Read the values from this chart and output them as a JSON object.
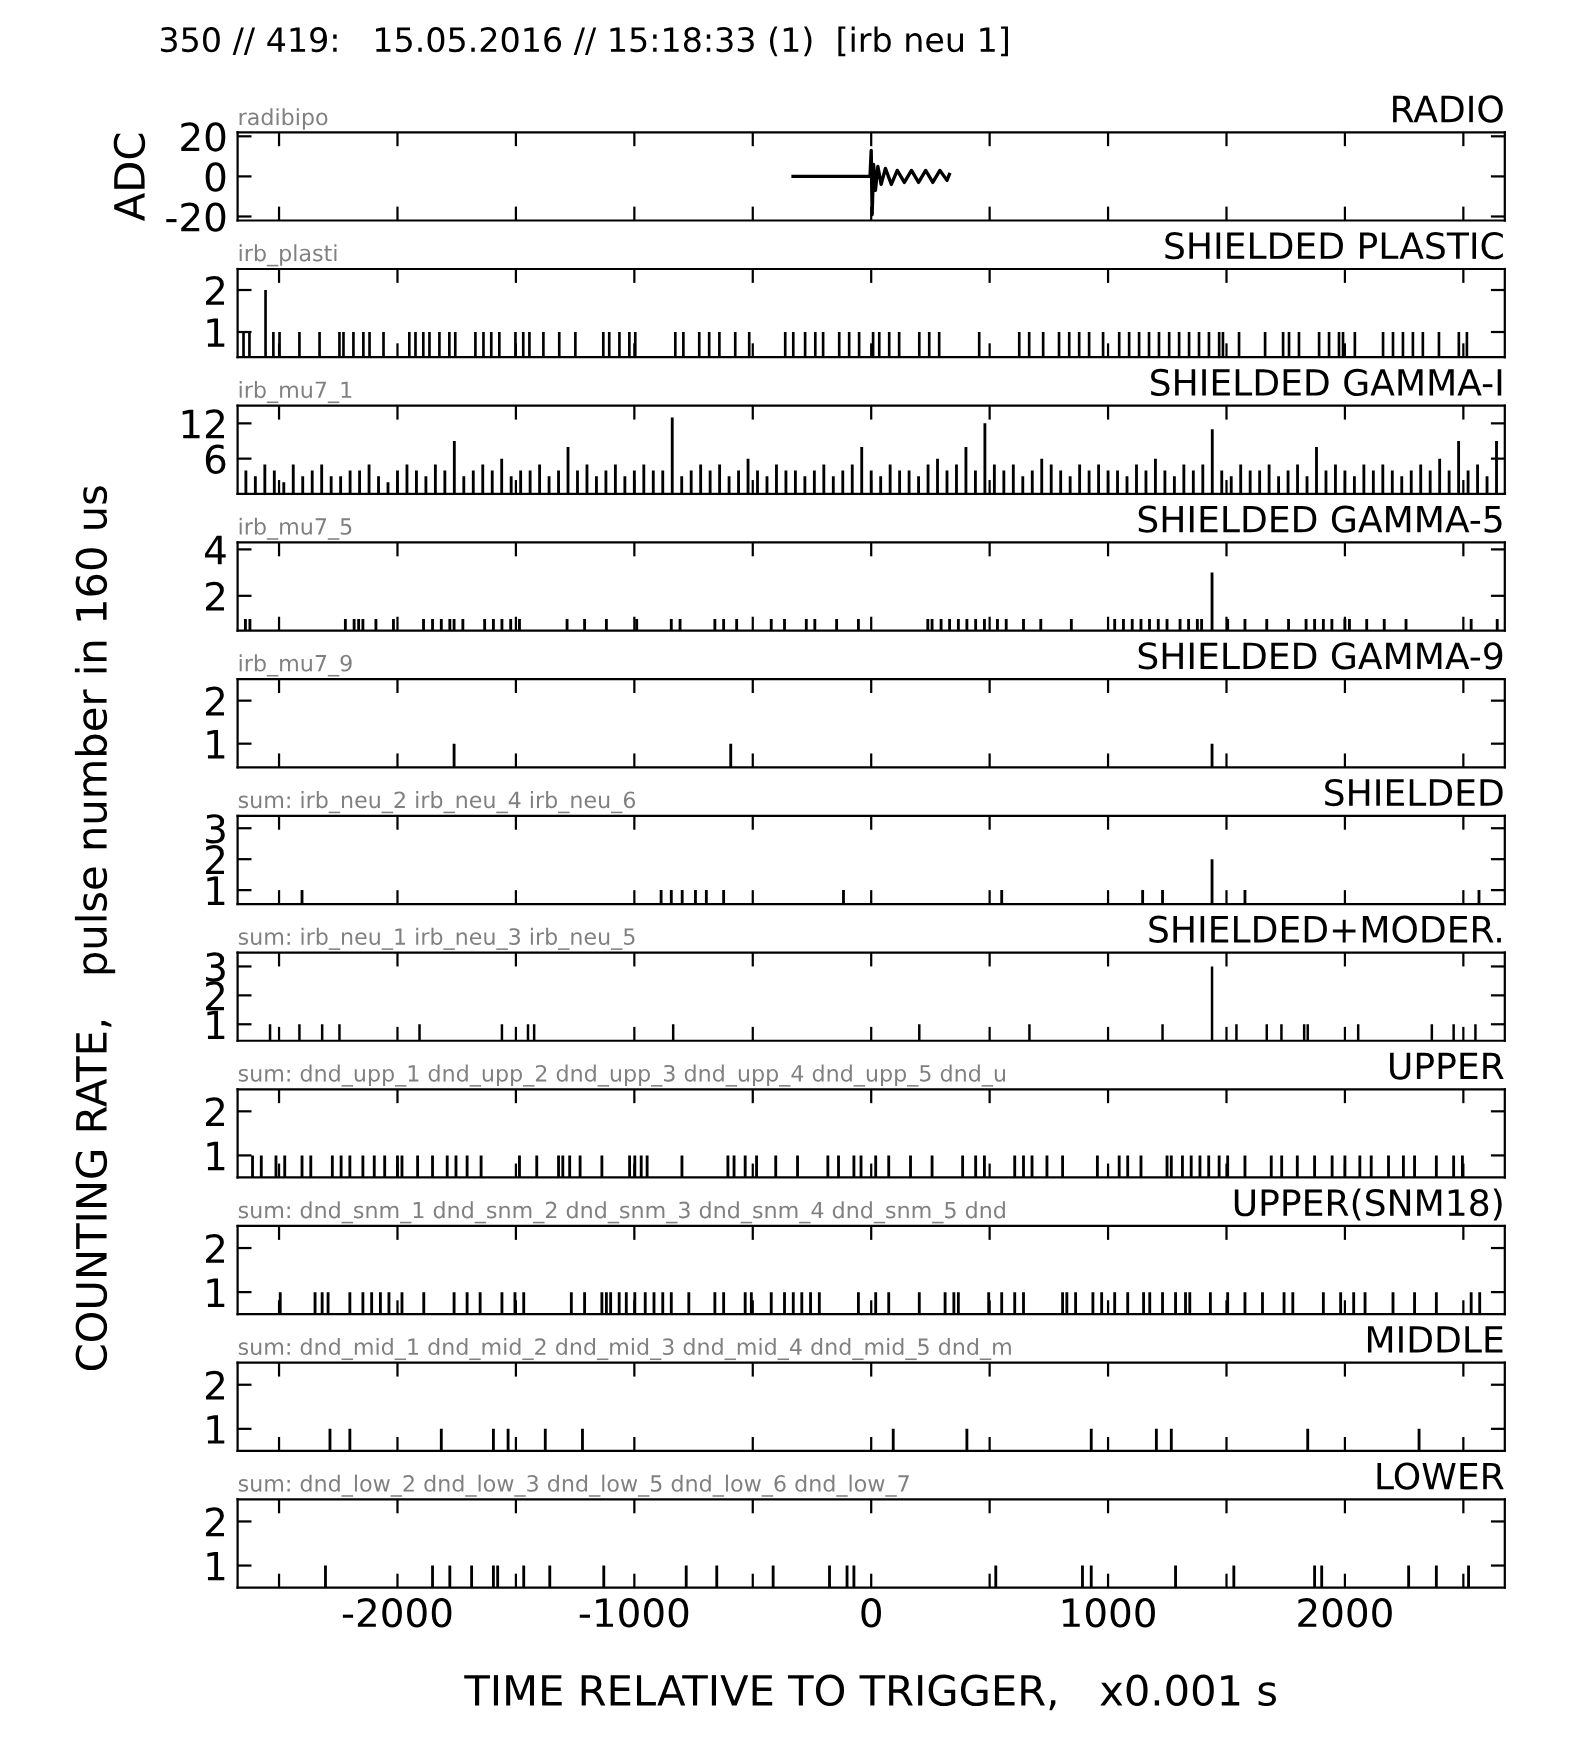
{
  "chart_data": [
    {
      "type": "line",
      "title": "RADIO",
      "subtitle": "350 // 419:   15.05.2016 // 15:18:33 (1)  [irb neu 1]",
      "ylabel": "ADC",
      "annotations": [
        "radibipo"
      ],
      "color": "#000000",
      "x": [
        -330,
        -5,
        0,
        4,
        10,
        18,
        28,
        42,
        60,
        85,
        110,
        140,
        170,
        200,
        230,
        260,
        290,
        320,
        330
      ],
      "values": [
        0,
        0,
        13,
        -19,
        6,
        -7,
        5,
        -4,
        4,
        -4,
        3,
        -3,
        3,
        -3,
        3,
        -3,
        3,
        -2,
        1
      ],
      "xlim": [
        -2675,
        2675
      ],
      "ylim": [
        -22,
        22
      ],
      "yticks": [
        -20,
        0,
        20
      ],
      "tick_labels": "y",
      "xticks": [
        {
          "value": -2500,
          "label": null
        },
        -2000,
        {
          "value": -1500,
          "label": null
        },
        -1000,
        {
          "value": -500,
          "label": null
        },
        0,
        {
          "value": 500,
          "label": null
        },
        1000,
        {
          "value": 1500,
          "label": null
        },
        2000,
        {
          "value": 2500,
          "label": null
        }
      ]
    },
    {
      "type": "bar",
      "title": "SHIELDED PLASTIC",
      "ylabel": "COUNTING RATE,   pulse number in 160 us",
      "annotations": [
        "irb_plasti"
      ],
      "color": "#000000",
      "x": [
        -2650,
        -2625,
        -2557,
        -2524,
        -2498,
        -2414,
        -2329,
        -2245,
        -2228,
        -2186,
        -2144,
        -2118,
        -2059,
        -1950,
        -1924,
        -1891,
        -1865,
        -1823,
        -1781,
        -1756,
        -1671,
        -1637,
        -1604,
        -1570,
        -1502,
        -1469,
        -1443,
        -1384,
        -1317,
        -1249,
        -1131,
        -1106,
        -1063,
        -1021,
        -996,
        -827,
        -793,
        -726,
        -684,
        -641,
        -574,
        -515,
        -363,
        -329,
        -279,
        -236,
        -203,
        -135,
        -93,
        -51,
        8,
        34,
        76,
        118,
        203,
        245,
        287,
        456,
        625,
        667,
        726,
        793,
        836,
        878,
        920,
        979,
        1047,
        1089,
        1131,
        1173,
        1215,
        1258,
        1300,
        1342,
        1384,
        1426,
        1469,
        1485,
        1553,
        1663,
        1739,
        1764,
        1806,
        1891,
        1933,
        1975,
        1992,
        2042,
        2161,
        2203,
        2245,
        2287,
        2329,
        2397,
        2481,
        2515
      ],
      "values": [
        1,
        1,
        2,
        1,
        1,
        1,
        1,
        1,
        1,
        1,
        1,
        1,
        1,
        1,
        1,
        1,
        1,
        1,
        1,
        1,
        1,
        1,
        1,
        1,
        1,
        1,
        1,
        1,
        1,
        1,
        1,
        1,
        1,
        1,
        1,
        1,
        1,
        1,
        1,
        1,
        1,
        1,
        1,
        1,
        1,
        1,
        1,
        1,
        1,
        1,
        1,
        1,
        1,
        1,
        1,
        1,
        1,
        1,
        1,
        1,
        1,
        1,
        1,
        1,
        1,
        1,
        1,
        1,
        1,
        1,
        1,
        1,
        1,
        1,
        1,
        1,
        1,
        1,
        1,
        1,
        1,
        1,
        1,
        1,
        1,
        1,
        1,
        1,
        1,
        1,
        1,
        1,
        1,
        1,
        1,
        1
      ],
      "xlim": [
        -2675,
        2675
      ],
      "ylim": [
        0.4,
        2.5
      ],
      "yticks": [
        1,
        2
      ],
      "tick_labels": "y",
      "xticks": [
        {
          "value": -2500,
          "label": null
        },
        -2000,
        {
          "value": -1500,
          "label": null
        },
        -1000,
        {
          "value": -500,
          "label": null
        },
        0,
        {
          "value": 500,
          "label": null
        },
        1000,
        {
          "value": 1500,
          "label": null
        },
        2000,
        {
          "value": 2500,
          "label": null
        }
      ]
    },
    {
      "type": "bar",
      "title": "SHIELDED GAMMA-I",
      "annotations": [
        "irb_mu7_1"
      ],
      "color": "#000000",
      "x": [
        -2640,
        -2600,
        -2560,
        -2520,
        -2480,
        -2440,
        -2400,
        -2360,
        -2320,
        -2280,
        -2240,
        -2200,
        -2160,
        -2120,
        -2080,
        -2040,
        -2000,
        -1960,
        -1920,
        -1880,
        -1840,
        -1800,
        -1760,
        -1720,
        -1680,
        -1640,
        -1600,
        -1560,
        -1520,
        -1480,
        -1440,
        -1400,
        -1360,
        -1320,
        -1280,
        -1240,
        -1200,
        -1160,
        -1120,
        -1080,
        -1040,
        -1000,
        -960,
        -920,
        -880,
        -840,
        -800,
        -760,
        -720,
        -680,
        -640,
        -600,
        -560,
        -520,
        -480,
        -440,
        -400,
        -360,
        -320,
        -280,
        -240,
        -200,
        -160,
        -120,
        -80,
        -40,
        0,
        40,
        80,
        120,
        160,
        200,
        240,
        280,
        320,
        360,
        400,
        440,
        480,
        520,
        560,
        600,
        640,
        680,
        720,
        760,
        800,
        840,
        880,
        920,
        960,
        1000,
        1040,
        1080,
        1120,
        1160,
        1200,
        1240,
        1280,
        1320,
        1360,
        1400,
        1440,
        1480,
        1520,
        1560,
        1600,
        1640,
        1680,
        1720,
        1760,
        1800,
        1840,
        1880,
        1920,
        1960,
        2000,
        2040,
        2080,
        2120,
        2160,
        2200,
        2240,
        2280,
        2320,
        2360,
        2400,
        2440,
        2480,
        2520,
        2560,
        2600,
        2640
      ],
      "values": [
        4,
        3,
        5,
        4,
        2,
        5,
        3,
        4,
        5,
        3,
        3,
        4,
        4,
        5,
        3,
        2,
        4,
        5,
        4,
        3,
        5,
        4,
        9,
        3,
        4,
        5,
        4,
        6,
        3,
        4,
        4,
        5,
        3,
        4,
        8,
        4,
        5,
        3,
        4,
        5,
        3,
        4,
        5,
        4,
        4,
        13,
        3,
        4,
        5,
        4,
        5,
        3,
        4,
        6,
        4,
        3,
        5,
        4,
        4,
        3,
        4,
        5,
        3,
        4,
        5,
        8,
        4,
        3,
        5,
        4,
        4,
        3,
        5,
        6,
        4,
        5,
        8,
        4,
        12,
        5,
        4,
        5,
        3,
        4,
        6,
        5,
        4,
        3,
        5,
        4,
        5,
        4,
        4,
        3,
        5,
        4,
        6,
        4,
        3,
        5,
        4,
        5,
        11,
        4,
        3,
        5,
        4,
        4,
        5,
        3,
        4,
        5,
        3,
        8,
        4,
        5,
        4,
        3,
        5,
        4,
        5,
        4,
        3,
        4,
        5,
        4,
        6,
        4,
        9,
        4,
        5,
        3,
        9
      ],
      "xlim": [
        -2675,
        2675
      ],
      "ylim": [
        0,
        15
      ],
      "yticks": [
        6,
        12
      ],
      "tick_labels": "y",
      "xticks": [
        {
          "value": -2500,
          "label": null
        },
        -2000,
        {
          "value": -1500,
          "label": null
        },
        -1000,
        {
          "value": -500,
          "label": null
        },
        0,
        {
          "value": 500,
          "label": null
        },
        1000,
        {
          "value": 1500,
          "label": null
        },
        2000,
        {
          "value": 2500,
          "label": null
        }
      ]
    },
    {
      "type": "bar",
      "title": "SHIELDED GAMMA-5",
      "annotations": [
        "irb_mu7_5"
      ],
      "color": "#000000",
      "x": [
        -2642,
        -2623,
        -2220,
        -2183,
        -2164,
        -2146,
        -2091,
        -2017,
        -1890,
        -1852,
        -1815,
        -1779,
        -1761,
        -1724,
        -1632,
        -1595,
        -1559,
        -1522,
        -1485,
        -1284,
        -1210,
        -1118,
        -990,
        -844,
        -807,
        -660,
        -623,
        -568,
        -422,
        -366,
        -274,
        -238,
        -146,
        -54,
        239,
        257,
        295,
        331,
        368,
        404,
        441,
        478,
        533,
        570,
        643,
        716,
        845,
        1028,
        1065,
        1102,
        1139,
        1175,
        1212,
        1249,
        1304,
        1340,
        1377,
        1395,
        1439,
        1505,
        1578,
        1670,
        1762,
        1836,
        1872,
        1909,
        1945,
        2000,
        2019,
        2092,
        2166,
        2258,
        2533,
        2643
      ],
      "values": [
        1,
        1,
        1,
        1,
        1,
        1,
        1,
        1,
        1,
        1,
        1,
        1,
        1,
        1,
        1,
        1,
        1,
        1,
        1,
        1,
        1,
        1,
        1,
        1,
        1,
        1,
        1,
        1,
        1,
        1,
        1,
        1,
        1,
        1,
        1,
        1,
        1,
        1,
        1,
        1,
        1,
        1,
        1,
        1,
        1,
        1,
        1,
        1,
        1,
        1,
        1,
        1,
        1,
        1,
        1,
        1,
        1,
        1,
        3,
        1,
        1,
        1,
        1,
        1,
        1,
        1,
        1,
        1,
        1,
        1,
        1,
        1,
        1,
        1
      ],
      "xlim": [
        -2675,
        2675
      ],
      "ylim": [
        0.5,
        4.3
      ],
      "yticks": [
        2,
        4
      ],
      "tick_labels": "y",
      "xticks": [
        {
          "value": -2500,
          "label": null
        },
        -2000,
        {
          "value": -1500,
          "label": null
        },
        -1000,
        {
          "value": -500,
          "label": null
        },
        0,
        {
          "value": 500,
          "label": null
        },
        1000,
        {
          "value": 1500,
          "label": null
        },
        2000,
        {
          "value": 2500,
          "label": null
        }
      ]
    },
    {
      "type": "bar",
      "title": "SHIELDED GAMMA-9",
      "annotations": [
        "irb_mu7_9"
      ],
      "color": "#000000",
      "x": [
        -1761,
        -593,
        1439
      ],
      "values": [
        1,
        1,
        1
      ],
      "xlim": [
        -2675,
        2675
      ],
      "ylim": [
        0.45,
        2.5
      ],
      "yticks": [
        1,
        2
      ],
      "tick_labels": "y",
      "xticks": [
        {
          "value": -2500,
          "label": null
        },
        -2000,
        {
          "value": -1500,
          "label": null
        },
        -1000,
        {
          "value": -500,
          "label": null
        },
        0,
        {
          "value": 500,
          "label": null
        },
        1000,
        {
          "value": 1500,
          "label": null
        },
        2000,
        {
          "value": 2500,
          "label": null
        }
      ]
    },
    {
      "type": "bar",
      "title": "SHIELDED",
      "annotations": [
        "sum: irb_neu_2 irb_neu_4 irb_neu_6"
      ],
      "color": "#000000",
      "x": [
        -2403,
        -887,
        -844,
        -798,
        -742,
        -696,
        -623,
        -117,
        551,
        1146,
        1230,
        1439,
        1578,
        2566
      ],
      "values": [
        1,
        1,
        1,
        1,
        1,
        1,
        1,
        1,
        1,
        1,
        1,
        2,
        1,
        1
      ],
      "xlim": [
        -2675,
        2675
      ],
      "ylim": [
        0.55,
        3.4
      ],
      "yticks": [
        1,
        2,
        3
      ],
      "tick_labels": "y",
      "xticks": [
        {
          "value": -2500,
          "label": null
        },
        -2000,
        {
          "value": -1500,
          "label": null
        },
        -1000,
        {
          "value": -500,
          "label": null
        },
        0,
        {
          "value": 500,
          "label": null
        },
        1000,
        {
          "value": 1500,
          "label": null
        },
        2000,
        {
          "value": 2500,
          "label": null
        }
      ]
    },
    {
      "type": "bar",
      "title": "SHIELDED+MODER.",
      "annotations": [
        "sum: irb_neu_1 irb_neu_3 irb_neu_5"
      ],
      "color": "#000000",
      "x": [
        -2538,
        -2414,
        -2318,
        -2245,
        -1907,
        -1559,
        -1449,
        -1423,
        -836,
        203,
        668,
        1230,
        1439,
        1542,
        1670,
        1732,
        1828,
        1843,
        2056,
        2367,
        2459,
        2551
      ],
      "values": [
        1,
        1,
        1,
        1,
        1,
        1,
        1,
        1,
        1,
        1,
        1,
        1,
        3,
        1,
        1,
        1,
        1,
        1,
        1,
        1,
        1,
        1
      ],
      "xlim": [
        -2675,
        2675
      ],
      "ylim": [
        0.43,
        3.48
      ],
      "yticks": [
        1,
        2,
        3
      ],
      "tick_labels": "y",
      "xticks": [
        {
          "value": -2500,
          "label": null
        },
        -2000,
        {
          "value": -1500,
          "label": null
        },
        -1000,
        {
          "value": -500,
          "label": null
        },
        0,
        {
          "value": 500,
          "label": null
        },
        1000,
        {
          "value": 1500,
          "label": null
        },
        2000,
        {
          "value": 2500,
          "label": null
        }
      ]
    },
    {
      "type": "bar",
      "title": "UPPER",
      "annotations": [
        "sum: dnd_upp_1 dnd_upp_2 dnd_upp_3 dnd_upp_4 dnd_upp_5 dnd_u"
      ],
      "color": "#000000",
      "x": [
        -2612,
        -2575,
        -2513,
        -2476,
        -2403,
        -2366,
        -2275,
        -2238,
        -2201,
        -2146,
        -2098,
        -2054,
        -2000,
        -1981,
        -1915,
        -1852,
        -1790,
        -1753,
        -1706,
        -1647,
        -1485,
        -1412,
        -1320,
        -1302,
        -1273,
        -1229,
        -1137,
        -1020,
        -998,
        -971,
        -946,
        -799,
        -605,
        -579,
        -532,
        -484,
        -403,
        -311,
        -183,
        -138,
        -73,
        -43,
        19,
        74,
        166,
        257,
        386,
        441,
        478,
        606,
        643,
        679,
        742,
        808,
        955,
        1047,
        1083,
        1139,
        1249,
        1267,
        1314,
        1351,
        1388,
        1425,
        1469,
        1505,
        1578,
        1689,
        1733,
        1799,
        1872,
        1946,
        2000,
        2063,
        2111,
        2184,
        2247,
        2294,
        2386,
        2459,
        2496
      ],
      "values": [
        1,
        1,
        1,
        1,
        1,
        1,
        1,
        1,
        1,
        1,
        1,
        1,
        1,
        1,
        1,
        1,
        1,
        1,
        1,
        1,
        1,
        1,
        1,
        1,
        1,
        1,
        1,
        1,
        1,
        1,
        1,
        1,
        1,
        1,
        1,
        1,
        1,
        1,
        1,
        1,
        1,
        1,
        1,
        1,
        1,
        1,
        1,
        1,
        1,
        1,
        1,
        1,
        1,
        1,
        1,
        1,
        1,
        1,
        1,
        1,
        1,
        1,
        1,
        1,
        1,
        1,
        1,
        1,
        1,
        1,
        1,
        1,
        1,
        1,
        1,
        1,
        1,
        1,
        1,
        1,
        1
      ],
      "xlim": [
        -2675,
        2675
      ],
      "ylim": [
        0.5,
        2.5
      ],
      "yticks": [
        1,
        2
      ],
      "tick_labels": "y",
      "xticks": [
        {
          "value": -2500,
          "label": null
        },
        -2000,
        {
          "value": -1500,
          "label": null
        },
        -1000,
        {
          "value": -500,
          "label": null
        },
        0,
        {
          "value": 500,
          "label": null
        },
        1000,
        {
          "value": 1500,
          "label": null
        },
        2000,
        {
          "value": 2500,
          "label": null
        }
      ]
    },
    {
      "type": "bar",
      "title": "UPPER(SNM18)",
      "annotations": [
        "sum: dnd_snm_1 dnd_snm_2 dnd_snm_3 dnd_snm_4 dnd_snm_5 dnd"
      ],
      "color": "#000000",
      "x": [
        -2495,
        -2348,
        -2318,
        -2293,
        -2201,
        -2146,
        -2109,
        -2072,
        -2036,
        -1981,
        -1889,
        -1761,
        -1706,
        -1651,
        -1559,
        -1504,
        -1467,
        -1266,
        -1210,
        -1137,
        -1118,
        -1100,
        -1064,
        -1034,
        -998,
        -954,
        -917,
        -880,
        -844,
        -770,
        -660,
        -623,
        -532,
        -506,
        -422,
        -366,
        -329,
        -293,
        -256,
        -219,
        -54,
        19,
        74,
        203,
        312,
        349,
        368,
        496,
        551,
        606,
        643,
        808,
        826,
        863,
        936,
        973,
        1028,
        1083,
        1150,
        1176,
        1230,
        1285,
        1327,
        1345,
        1432,
        1505,
        1578,
        1652,
        1743,
        1780,
        1909,
        1982,
        2037,
        2085,
        2203,
        2294,
        2386,
        2533,
        2569
      ],
      "values": [
        1,
        1,
        1,
        1,
        1,
        1,
        1,
        1,
        1,
        1,
        1,
        1,
        1,
        1,
        1,
        1,
        1,
        1,
        1,
        1,
        1,
        1,
        1,
        1,
        1,
        1,
        1,
        1,
        1,
        1,
        1,
        1,
        1,
        1,
        1,
        1,
        1,
        1,
        1,
        1,
        1,
        1,
        1,
        1,
        1,
        1,
        1,
        1,
        1,
        1,
        1,
        1,
        1,
        1,
        1,
        1,
        1,
        1,
        1,
        1,
        1,
        1,
        1,
        1,
        1,
        1,
        1,
        1,
        1,
        1,
        1,
        1,
        1,
        1,
        1,
        1,
        1,
        1,
        1
      ],
      "xlim": [
        -2675,
        2675
      ],
      "ylim": [
        0.5,
        2.5
      ],
      "yticks": [
        1,
        2
      ],
      "tick_labels": "y",
      "xticks": [
        {
          "value": -2500,
          "label": null
        },
        -2000,
        {
          "value": -1500,
          "label": null
        },
        -1000,
        {
          "value": -500,
          "label": null
        },
        0,
        {
          "value": 500,
          "label": null
        },
        1000,
        {
          "value": 1500,
          "label": null
        },
        2000,
        {
          "value": 2500,
          "label": null
        }
      ]
    },
    {
      "type": "bar",
      "title": "MIDDLE",
      "annotations": [
        "sum: dnd_mid_1 dnd_mid_2 dnd_mid_3 dnd_mid_4 dnd_mid_5 dnd_m"
      ],
      "color": "#000000",
      "x": [
        -2285,
        -2201,
        -1815,
        -1595,
        -1533,
        -1376,
        -1219,
        93,
        404,
        929,
        1204,
        1267,
        1843,
        2313
      ],
      "values": [
        1,
        1,
        1,
        1,
        1,
        1,
        1,
        1,
        1,
        1,
        1,
        1,
        1,
        1
      ],
      "xlim": [
        -2675,
        2675
      ],
      "ylim": [
        0.5,
        2.5
      ],
      "yticks": [
        1,
        2
      ],
      "tick_labels": "y",
      "xticks": [
        {
          "value": -2500,
          "label": null
        },
        -2000,
        {
          "value": -1500,
          "label": null
        },
        -1000,
        {
          "value": -500,
          "label": null
        },
        0,
        {
          "value": 500,
          "label": null
        },
        1000,
        {
          "value": 1500,
          "label": null
        },
        2000,
        {
          "value": 2500,
          "label": null
        }
      ]
    },
    {
      "type": "bar",
      "title": "LOWER",
      "xlabel": "TIME RELATIVE TO TRIGGER,   x0.001 s",
      "annotations": [
        "sum: dnd_low_2 dnd_low_3 dnd_low_5 dnd_low_6 dnd_low_7"
      ],
      "color": "#000000",
      "x": [
        -2304,
        -1852,
        -1779,
        -1687,
        -1595,
        -1577,
        -1467,
        -1357,
        -1129,
        -781,
        -652,
        -414,
        -176,
        -102,
        -73,
        526,
        892,
        929,
        1285,
        1531,
        1872,
        1902,
        2269,
        2386,
        2522
      ],
      "values": [
        1,
        1,
        1,
        1,
        1,
        1,
        1,
        1,
        1,
        1,
        1,
        1,
        1,
        1,
        1,
        1,
        1,
        1,
        1,
        1,
        1,
        1,
        1,
        1,
        1
      ],
      "xlim": [
        -2675,
        2675
      ],
      "ylim": [
        0.5,
        2.5
      ],
      "yticks": [
        1,
        2
      ],
      "xticks": [
        {
          "value": -2500,
          "label": null
        },
        -2000,
        {
          "value": -1500,
          "label": null
        },
        -1000,
        {
          "value": -500,
          "label": null
        },
        0,
        {
          "value": 500,
          "label": null
        },
        1000,
        {
          "value": 1500,
          "label": null
        },
        2000,
        {
          "value": 2500,
          "label": null
        }
      ]
    }
  ]
}
